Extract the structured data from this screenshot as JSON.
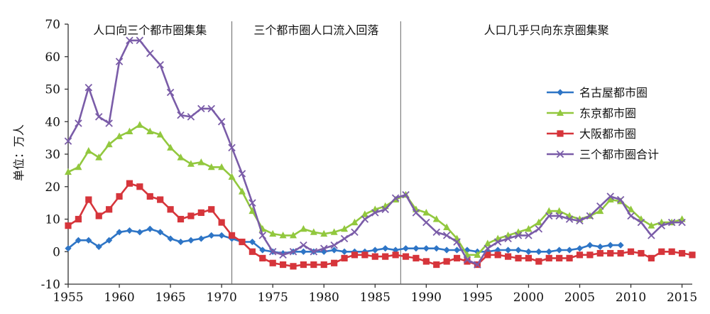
{
  "chart_data": {
    "type": "line",
    "title": "",
    "xlabel": "",
    "ylabel": "单位：万人",
    "xlim": [
      1955,
      2016
    ],
    "ylim": [
      -10,
      70
    ],
    "x_ticks": [
      1955,
      1960,
      1965,
      1970,
      1975,
      1980,
      1985,
      1990,
      1995,
      2000,
      2005,
      2010,
      2015
    ],
    "y_ticks": [
      -10,
      0,
      10,
      20,
      30,
      40,
      50,
      60,
      70
    ],
    "grid": false,
    "legend_position": "right",
    "periods": [
      {
        "label": "人口向三个都市圈集集",
        "start": 1955,
        "end": 1971
      },
      {
        "label": "三个都市圈人口流入回落",
        "start": 1971,
        "end": 1987.5
      },
      {
        "label": "人口几乎只向东京圈集聚",
        "start": 1987.5,
        "end": 2016
      }
    ],
    "dividers": [
      1971,
      1987.5
    ],
    "series": [
      {
        "name": "名古屋都市圈",
        "color": "#2e75c6",
        "marker": "diamond",
        "points": [
          [
            1955,
            1
          ],
          [
            1956,
            3.5
          ],
          [
            1957,
            3.5
          ],
          [
            1958,
            1.5
          ],
          [
            1959,
            3.5
          ],
          [
            1960,
            6
          ],
          [
            1961,
            6.5
          ],
          [
            1962,
            6
          ],
          [
            1963,
            7
          ],
          [
            1964,
            6
          ],
          [
            1965,
            4
          ],
          [
            1966,
            3
          ],
          [
            1967,
            3.5
          ],
          [
            1968,
            4
          ],
          [
            1969,
            5
          ],
          [
            1970,
            5
          ],
          [
            1971,
            4
          ],
          [
            1972,
            3
          ],
          [
            1973,
            3
          ],
          [
            1974,
            0.5
          ],
          [
            1975,
            0
          ],
          [
            1976,
            -0.5
          ],
          [
            1977,
            0
          ],
          [
            1978,
            0
          ],
          [
            1979,
            0
          ],
          [
            1980,
            0
          ],
          [
            1981,
            0.5
          ],
          [
            1982,
            0
          ],
          [
            1983,
            0
          ],
          [
            1984,
            0
          ],
          [
            1985,
            0.5
          ],
          [
            1986,
            1
          ],
          [
            1987,
            0.5
          ],
          [
            1988,
            1
          ],
          [
            1989,
            1
          ],
          [
            1990,
            1
          ],
          [
            1991,
            1
          ],
          [
            1992,
            0.5
          ],
          [
            1993,
            0.5
          ],
          [
            1994,
            0.5
          ],
          [
            1995,
            0
          ],
          [
            1996,
            0
          ],
          [
            1997,
            0.5
          ],
          [
            1998,
            0.5
          ],
          [
            1999,
            0.5
          ],
          [
            2000,
            0
          ],
          [
            2001,
            0
          ],
          [
            2002,
            0
          ],
          [
            2003,
            0.5
          ],
          [
            2004,
            0.5
          ],
          [
            2005,
            1
          ],
          [
            2006,
            2
          ],
          [
            2007,
            1.5
          ],
          [
            2008,
            2
          ],
          [
            2009,
            2
          ]
        ]
      },
      {
        "name": "东京都市圈",
        "color": "#92c83e",
        "marker": "triangle",
        "points": [
          [
            1955,
            24.5
          ],
          [
            1956,
            26
          ],
          [
            1957,
            31
          ],
          [
            1958,
            29
          ],
          [
            1959,
            33
          ],
          [
            1960,
            35.5
          ],
          [
            1961,
            37
          ],
          [
            1962,
            39
          ],
          [
            1963,
            37
          ],
          [
            1964,
            36
          ],
          [
            1965,
            32
          ],
          [
            1966,
            29
          ],
          [
            1967,
            27
          ],
          [
            1968,
            27.5
          ],
          [
            1969,
            26
          ],
          [
            1970,
            26
          ],
          [
            1971,
            23
          ],
          [
            1972,
            18.5
          ],
          [
            1973,
            12.5
          ],
          [
            1974,
            7
          ],
          [
            1975,
            5.5
          ],
          [
            1976,
            5
          ],
          [
            1977,
            5
          ],
          [
            1978,
            7
          ],
          [
            1979,
            6
          ],
          [
            1980,
            5.5
          ],
          [
            1981,
            6
          ],
          [
            1982,
            7
          ],
          [
            1983,
            9
          ],
          [
            1984,
            11.5
          ],
          [
            1985,
            13
          ],
          [
            1986,
            14
          ],
          [
            1987,
            16
          ],
          [
            1988,
            17.5
          ],
          [
            1989,
            13
          ],
          [
            1990,
            12
          ],
          [
            1991,
            10
          ],
          [
            1992,
            7.5
          ],
          [
            1993,
            4
          ],
          [
            1994,
            -1
          ],
          [
            1995,
            -1
          ],
          [
            1996,
            2.5
          ],
          [
            1997,
            4
          ],
          [
            1998,
            5
          ],
          [
            1999,
            6
          ],
          [
            2000,
            7
          ],
          [
            2001,
            9
          ],
          [
            2002,
            12.5
          ],
          [
            2003,
            12.5
          ],
          [
            2004,
            11
          ],
          [
            2005,
            10
          ],
          [
            2006,
            11
          ],
          [
            2007,
            12.5
          ],
          [
            2008,
            16
          ],
          [
            2009,
            15.5
          ],
          [
            2010,
            13
          ],
          [
            2011,
            10
          ],
          [
            2012,
            8
          ],
          [
            2013,
            9
          ],
          [
            2014,
            9
          ],
          [
            2015,
            10
          ]
        ]
      },
      {
        "name": "大阪都市圈",
        "color": "#d6353b",
        "marker": "square",
        "points": [
          [
            1955,
            8
          ],
          [
            1956,
            10
          ],
          [
            1957,
            16
          ],
          [
            1958,
            11
          ],
          [
            1959,
            13
          ],
          [
            1960,
            17
          ],
          [
            1961,
            21
          ],
          [
            1962,
            20
          ],
          [
            1963,
            17
          ],
          [
            1964,
            16
          ],
          [
            1965,
            13
          ],
          [
            1966,
            10
          ],
          [
            1967,
            11
          ],
          [
            1968,
            12
          ],
          [
            1969,
            13
          ],
          [
            1970,
            9
          ],
          [
            1971,
            5
          ],
          [
            1972,
            3
          ],
          [
            1973,
            0
          ],
          [
            1974,
            -2
          ],
          [
            1975,
            -3.5
          ],
          [
            1976,
            -4
          ],
          [
            1977,
            -4.5
          ],
          [
            1978,
            -4
          ],
          [
            1979,
            -4
          ],
          [
            1980,
            -4
          ],
          [
            1981,
            -3.5
          ],
          [
            1982,
            -2
          ],
          [
            1983,
            -1
          ],
          [
            1984,
            -1
          ],
          [
            1985,
            -1.5
          ],
          [
            1986,
            -1.5
          ],
          [
            1987,
            -1
          ],
          [
            1988,
            -1.5
          ],
          [
            1989,
            -2
          ],
          [
            1990,
            -3
          ],
          [
            1991,
            -4
          ],
          [
            1992,
            -3
          ],
          [
            1993,
            -2
          ],
          [
            1994,
            -3
          ],
          [
            1995,
            -4
          ],
          [
            1996,
            -1
          ],
          [
            1997,
            -1
          ],
          [
            1998,
            -1.5
          ],
          [
            1999,
            -2
          ],
          [
            2000,
            -2
          ],
          [
            2001,
            -3
          ],
          [
            2002,
            -2
          ],
          [
            2003,
            -2
          ],
          [
            2004,
            -2
          ],
          [
            2005,
            -1
          ],
          [
            2006,
            -1
          ],
          [
            2007,
            -0.5
          ],
          [
            2008,
            -0.5
          ],
          [
            2009,
            -0.5
          ],
          [
            2010,
            0
          ],
          [
            2011,
            -0.5
          ],
          [
            2012,
            -2
          ],
          [
            2013,
            0
          ],
          [
            2014,
            0
          ],
          [
            2015,
            -0.5
          ],
          [
            2016,
            -1
          ]
        ]
      },
      {
        "name": "三个都市圈合计",
        "color": "#7a5ca8",
        "marker": "x",
        "points": [
          [
            1955,
            34
          ],
          [
            1956,
            39.5
          ],
          [
            1957,
            50.5
          ],
          [
            1958,
            41.5
          ],
          [
            1959,
            39.5
          ],
          [
            1960,
            58.5
          ],
          [
            1961,
            65
          ],
          [
            1962,
            65
          ],
          [
            1963,
            61
          ],
          [
            1964,
            57.5
          ],
          [
            1965,
            49
          ],
          [
            1966,
            42
          ],
          [
            1967,
            41.5
          ],
          [
            1968,
            44
          ],
          [
            1969,
            44
          ],
          [
            1970,
            40
          ],
          [
            1971,
            32
          ],
          [
            1972,
            24
          ],
          [
            1973,
            15
          ],
          [
            1974,
            5
          ],
          [
            1975,
            0
          ],
          [
            1976,
            -1
          ],
          [
            1977,
            0
          ],
          [
            1978,
            2
          ],
          [
            1979,
            0
          ],
          [
            1980,
            1
          ],
          [
            1981,
            2
          ],
          [
            1982,
            4
          ],
          [
            1983,
            6
          ],
          [
            1984,
            10
          ],
          [
            1985,
            12
          ],
          [
            1986,
            13
          ],
          [
            1987,
            16.5
          ],
          [
            1988,
            17.5
          ],
          [
            1989,
            12
          ],
          [
            1990,
            9
          ],
          [
            1991,
            6
          ],
          [
            1992,
            5
          ],
          [
            1993,
            3
          ],
          [
            1994,
            -2.5
          ],
          [
            1995,
            -4
          ],
          [
            1996,
            1
          ],
          [
            1997,
            3
          ],
          [
            1998,
            4
          ],
          [
            1999,
            5
          ],
          [
            2000,
            5
          ],
          [
            2001,
            7
          ],
          [
            2002,
            11
          ],
          [
            2003,
            11
          ],
          [
            2004,
            10
          ],
          [
            2005,
            9.5
          ],
          [
            2006,
            11
          ],
          [
            2007,
            14
          ],
          [
            2008,
            17
          ],
          [
            2009,
            16
          ],
          [
            2010,
            11
          ],
          [
            2011,
            9
          ],
          [
            2012,
            5
          ],
          [
            2013,
            8
          ],
          [
            2014,
            9
          ],
          [
            2015,
            9
          ]
        ]
      }
    ]
  }
}
